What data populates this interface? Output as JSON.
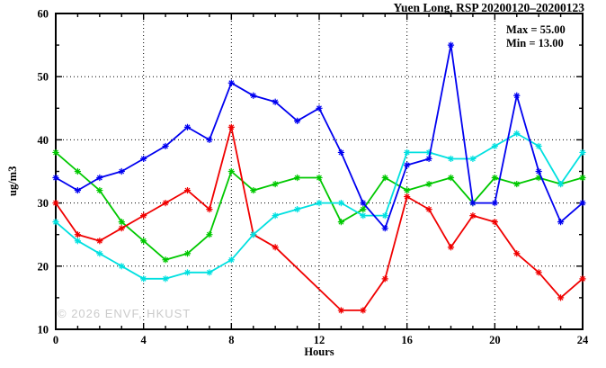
{
  "window": {
    "kind": "air-quality time-series plot",
    "station": "Yuen Long",
    "pollutant": "RSP"
  },
  "chart_data": {
    "type": "line",
    "title": "Yuen Long, RSP 20200120–20200123",
    "xlabel": "Hours",
    "ylabel": "ug/m3",
    "xlim": [
      0,
      24
    ],
    "ylim": [
      10,
      60
    ],
    "x_major_ticks": [
      0,
      4,
      8,
      12,
      16,
      20,
      24
    ],
    "y_major_ticks": [
      10,
      20,
      30,
      40,
      50,
      60
    ],
    "x_minor_step": 1,
    "y_minor_step": 5,
    "grid": "dotted lines at interior major ticks, both axes",
    "legend_position": "none",
    "annotations": {
      "max_label": "Max = 55.00",
      "min_label": "Min = 13.00"
    },
    "watermark": "© 2026 ENVF, HKUST",
    "x": [
      0,
      1,
      2,
      3,
      4,
      5,
      6,
      7,
      8,
      9,
      10,
      11,
      12,
      13,
      14,
      15,
      16,
      17,
      18,
      19,
      20,
      21,
      22,
      23,
      24
    ],
    "series": [
      {
        "name": "green-series",
        "color": "#00c800",
        "values": [
          38,
          35,
          32,
          27,
          24,
          21,
          22,
          25,
          35,
          32,
          33,
          34,
          34,
          27,
          29,
          34,
          32,
          33,
          34,
          30,
          34,
          33,
          34,
          33,
          34
        ]
      },
      {
        "name": "red-series",
        "color": "#f00000",
        "values": [
          30,
          25,
          24,
          26,
          28,
          30,
          32,
          29,
          42,
          25,
          23,
          null,
          null,
          13,
          13,
          18,
          31,
          29,
          23,
          28,
          27,
          22,
          19,
          15,
          18
        ]
      },
      {
        "name": "cyan-series",
        "color": "#00e0e0",
        "values": [
          27,
          24,
          22,
          20,
          18,
          18,
          19,
          19,
          21,
          25,
          28,
          29,
          30,
          30,
          28,
          28,
          38,
          38,
          37,
          37,
          39,
          41,
          39,
          33,
          38
        ]
      },
      {
        "name": "blue-series",
        "color": "#0000f0",
        "values": [
          34,
          32,
          34,
          35,
          37,
          39,
          42,
          40,
          49,
          47,
          46,
          43,
          45,
          38,
          30,
          26,
          36,
          37,
          55,
          30,
          30,
          47,
          35,
          27,
          30
        ]
      }
    ]
  },
  "style_colors": {
    "frame": "#000000",
    "grid": "#000000",
    "watermark_gray": "#cbcbcb"
  }
}
